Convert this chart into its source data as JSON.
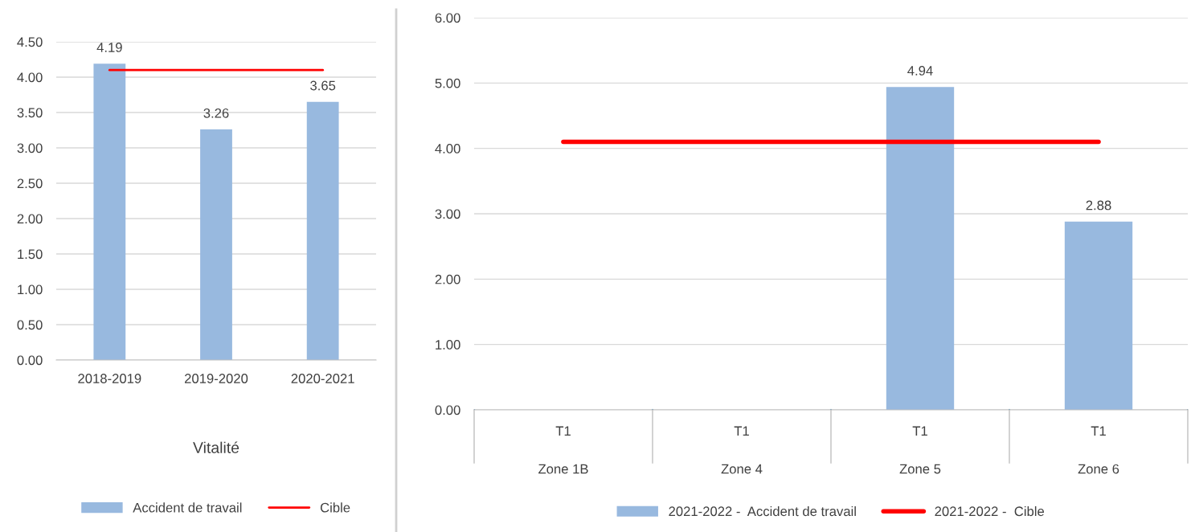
{
  "chart_data": [
    {
      "type": "bar",
      "xlabel": "Vitalité",
      "categories": [
        "2018-2019",
        "2019-2020",
        "2020-2021"
      ],
      "series": [
        {
          "name": "Accident de travail",
          "color": "#98b9df",
          "values": [
            4.19,
            3.26,
            3.65
          ],
          "value_labels": [
            "4.19",
            "3.26",
            "3.65"
          ]
        },
        {
          "name": "Cible",
          "type": "line",
          "color": "#ff0000",
          "values": [
            4.1,
            4.1,
            4.1
          ]
        }
      ],
      "ylim": [
        0,
        4.5
      ],
      "yticks": [
        {
          "value": 0,
          "label": "0.00"
        },
        {
          "value": 0.5,
          "label": "0.50"
        },
        {
          "value": 1,
          "label": "1.00"
        },
        {
          "value": 1.5,
          "label": "1.50"
        },
        {
          "value": 2,
          "label": "2.00"
        },
        {
          "value": 2.5,
          "label": "2.50"
        },
        {
          "value": 3,
          "label": "3.00"
        },
        {
          "value": 3.5,
          "label": "3.50"
        },
        {
          "value": 4,
          "label": "4.00"
        },
        {
          "value": 4.5,
          "label": "4.50"
        }
      ],
      "grid": "y",
      "legend": "bottom",
      "marker": "none"
    },
    {
      "type": "bar",
      "categories": [
        "T1\nZone 1B",
        "T1\nZone 4",
        "T1\nZone 5",
        "T1\nZone 6"
      ],
      "series": [
        {
          "name": "2021-2022 -  Accident de travail",
          "color": "#98b9df",
          "values": [
            null,
            null,
            4.94,
            2.88
          ],
          "value_labels": [
            null,
            null,
            "4.94",
            "2.88"
          ]
        },
        {
          "name": "2021-2022 -  Cible",
          "type": "line",
          "color": "#ff0000",
          "values": [
            4.1,
            4.1,
            4.1,
            4.1
          ]
        }
      ],
      "ylim": [
        0,
        6
      ],
      "yticks": [
        {
          "value": 0,
          "label": "0.00"
        },
        {
          "value": 1,
          "label": "1.00"
        },
        {
          "value": 2,
          "label": "2.00"
        },
        {
          "value": 3,
          "label": "3.00"
        },
        {
          "value": 4,
          "label": "4.00"
        },
        {
          "value": 5,
          "label": "5.00"
        },
        {
          "value": 6,
          "label": "6.00"
        }
      ],
      "grid": "y",
      "legend": "bottom",
      "marker": "none"
    }
  ]
}
